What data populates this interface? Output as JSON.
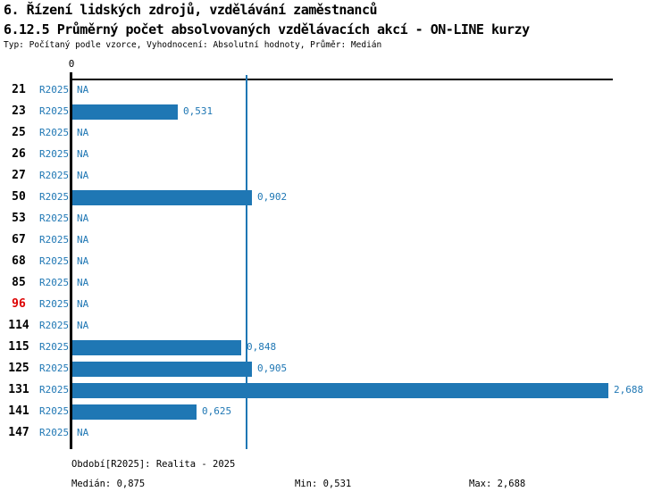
{
  "header": {
    "title_line1": "6. Řízení lidských zdrojů, vzdělávání zaměstnanců",
    "title_line2": "6.12.5 Průměrný počet absolvovaných vzdělávacích akcí - ON-LINE kurzy",
    "subtitle": "Typ: Počítaný podle vzorce, Vyhodnocení: Absolutní hodnoty, Průměr: Medián"
  },
  "colors": {
    "bar": "#1f77b4",
    "blue_text": "#1f77b4",
    "median_line": "#1f77b4",
    "red_category": "#dd0000",
    "axis": "#000000"
  },
  "chart_data": {
    "type": "bar",
    "orientation": "horizontal",
    "title": "6.12.5 Průměrný počet absolvovaných vzdělávacích akcí - ON-LINE kurzy",
    "xlabel": "",
    "ylabel": "",
    "xlim": [
      0,
      3
    ],
    "axis_origin_label": "0",
    "grid": false,
    "legend_position": "none",
    "period_label": "R2025",
    "na_label": "NA",
    "categories": [
      "21",
      "23",
      "25",
      "26",
      "27",
      "50",
      "53",
      "67",
      "68",
      "85",
      "96",
      "114",
      "115",
      "125",
      "131",
      "141",
      "147"
    ],
    "values": [
      null,
      0.531,
      null,
      null,
      null,
      0.902,
      null,
      null,
      null,
      null,
      null,
      null,
      0.848,
      0.905,
      2.688,
      0.625,
      null
    ],
    "value_labels": [
      "NA",
      "0,531",
      "NA",
      "NA",
      "NA",
      "0,902",
      "NA",
      "NA",
      "NA",
      "NA",
      "NA",
      "NA",
      "0,848",
      "0,905",
      "2,688",
      "0,625",
      "NA"
    ],
    "highlighted_categories": [
      "96"
    ],
    "median": 0.875,
    "min": 0.531,
    "max": 2.688
  },
  "footer": {
    "period": "Období[R2025]: Realita - 2025",
    "median": "Medián: 0,875",
    "min": "Min: 0,531",
    "max": "Max: 2,688"
  }
}
